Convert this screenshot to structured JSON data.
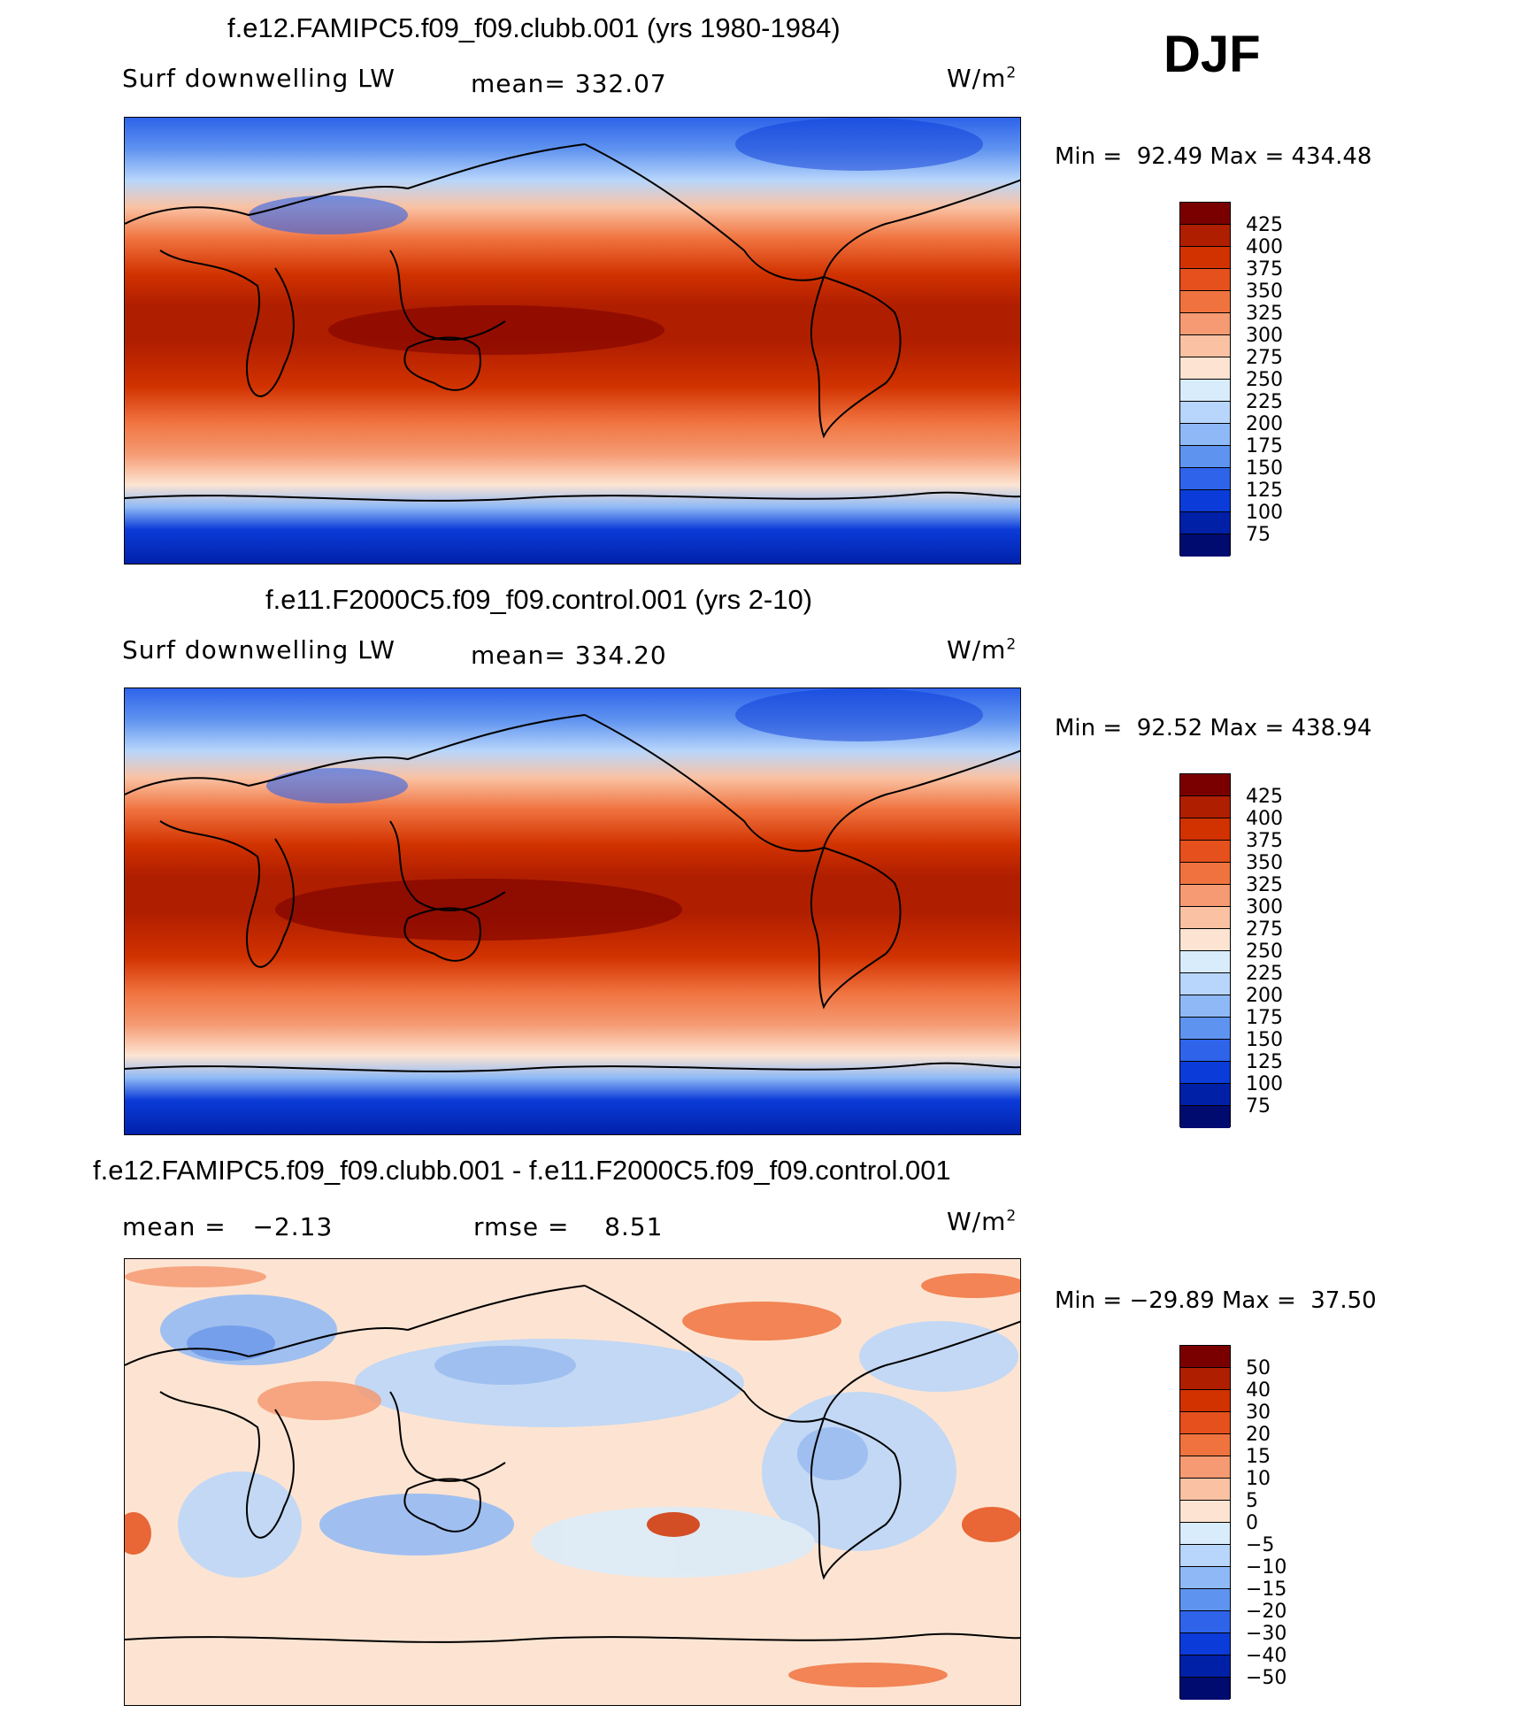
{
  "season": "DJF",
  "panels": [
    {
      "title": "f.e12.FAMIPC5.f09_f09.clubb.001 (yrs 1980-1984)",
      "left_label": "Surf downwelling LW",
      "center_label": "mean= 332.07",
      "units_base": "W/m",
      "units_exp": "2",
      "min_label": "Min =",
      "min_value": "92.49",
      "max_label": "Max =",
      "max_value": "434.48",
      "colorbar_ticks": [
        "425",
        "400",
        "375",
        "350",
        "325",
        "300",
        "275",
        "250",
        "225",
        "200",
        "175",
        "150",
        "125",
        "100",
        "75"
      ]
    },
    {
      "title": "f.e11.F2000C5.f09_f09.control.001 (yrs 2-10)",
      "left_label": "Surf downwelling LW",
      "center_label": "mean= 334.20",
      "units_base": "W/m",
      "units_exp": "2",
      "min_label": "Min =",
      "min_value": "92.52",
      "max_label": "Max =",
      "max_value": "438.94",
      "colorbar_ticks": [
        "425",
        "400",
        "375",
        "350",
        "325",
        "300",
        "275",
        "250",
        "225",
        "200",
        "175",
        "150",
        "125",
        "100",
        "75"
      ]
    },
    {
      "title": "f.e12.FAMIPC5.f09_f09.clubb.001 - f.e11.F2000C5.f09_f09.control.001",
      "left_label": "mean =   −2.13",
      "center_label": "rmse =    8.51",
      "units_base": "W/m",
      "units_exp": "2",
      "min_label": "Min =",
      "min_value": "−29.89",
      "max_label": "Max =",
      "max_value": "37.50",
      "colorbar_ticks": [
        "50",
        "40",
        "30",
        "20",
        "15",
        "10",
        "5",
        "0",
        "−5",
        "−10",
        "−15",
        "−20",
        "−30",
        "−40",
        "−50"
      ]
    }
  ],
  "colors": {
    "abs_scale": [
      "#7a0000",
      "#b01e00",
      "#d13200",
      "#e5501c",
      "#f0733f",
      "#f59a72",
      "#fac2a3",
      "#fde4d2",
      "#d9ecfb",
      "#b8d6fb",
      "#8fb9f6",
      "#5f93f0",
      "#2e63ea",
      "#0b3bd8",
      "#0020a8",
      "#000b70"
    ],
    "diff_scale": [
      "#7a0000",
      "#b01e00",
      "#d13200",
      "#e5501c",
      "#f0733f",
      "#f59a72",
      "#fac2a3",
      "#fde4d2",
      "#d9ecfb",
      "#b8d6fb",
      "#8fb9f6",
      "#5f93f0",
      "#2e63ea",
      "#0b3bd8",
      "#0020a8",
      "#000b70"
    ],
    "diff_background": "#fde4d2",
    "coastline": "#000000"
  },
  "chart_data": [
    {
      "type": "heatmap",
      "title": "f.e12.FAMIPC5.f09_f09.clubb.001 (yrs 1980-1984)",
      "variable": "Surf downwelling LW",
      "units": "W/m2",
      "mean": 332.07,
      "min": 92.49,
      "max": 434.48,
      "contour_levels": [
        75,
        100,
        125,
        150,
        175,
        200,
        225,
        250,
        275,
        300,
        325,
        350,
        375,
        400,
        425
      ],
      "lat_band_values": {
        "lat": [
          85,
          70,
          55,
          40,
          25,
          10,
          0,
          -10,
          -25,
          -40,
          -55,
          -65,
          -80
        ],
        "value": [
          175,
          225,
          270,
          310,
          360,
          400,
          415,
          410,
          375,
          320,
          270,
          210,
          110
        ]
      }
    },
    {
      "type": "heatmap",
      "title": "f.e11.F2000C5.f09_f09.control.001 (yrs 2-10)",
      "variable": "Surf downwelling LW",
      "units": "W/m2",
      "mean": 334.2,
      "min": 92.52,
      "max": 438.94,
      "contour_levels": [
        75,
        100,
        125,
        150,
        175,
        200,
        225,
        250,
        275,
        300,
        325,
        350,
        375,
        400,
        425
      ],
      "lat_band_values": {
        "lat": [
          85,
          70,
          55,
          40,
          25,
          10,
          0,
          -10,
          -25,
          -40,
          -55,
          -65,
          -80
        ],
        "value": [
          170,
          220,
          270,
          315,
          365,
          405,
          420,
          412,
          380,
          325,
          270,
          205,
          105
        ]
      }
    },
    {
      "type": "heatmap",
      "title": "f.e12.FAMIPC5.f09_f09.clubb.001 - f.e11.F2000C5.f09_f09.control.001",
      "units": "W/m2",
      "mean": -2.13,
      "rmse": 8.51,
      "min": -29.89,
      "max": 37.5,
      "contour_levels": [
        -50,
        -40,
        -30,
        -20,
        -15,
        -10,
        -5,
        0,
        5,
        10,
        15,
        20,
        30,
        40,
        50
      ]
    }
  ]
}
